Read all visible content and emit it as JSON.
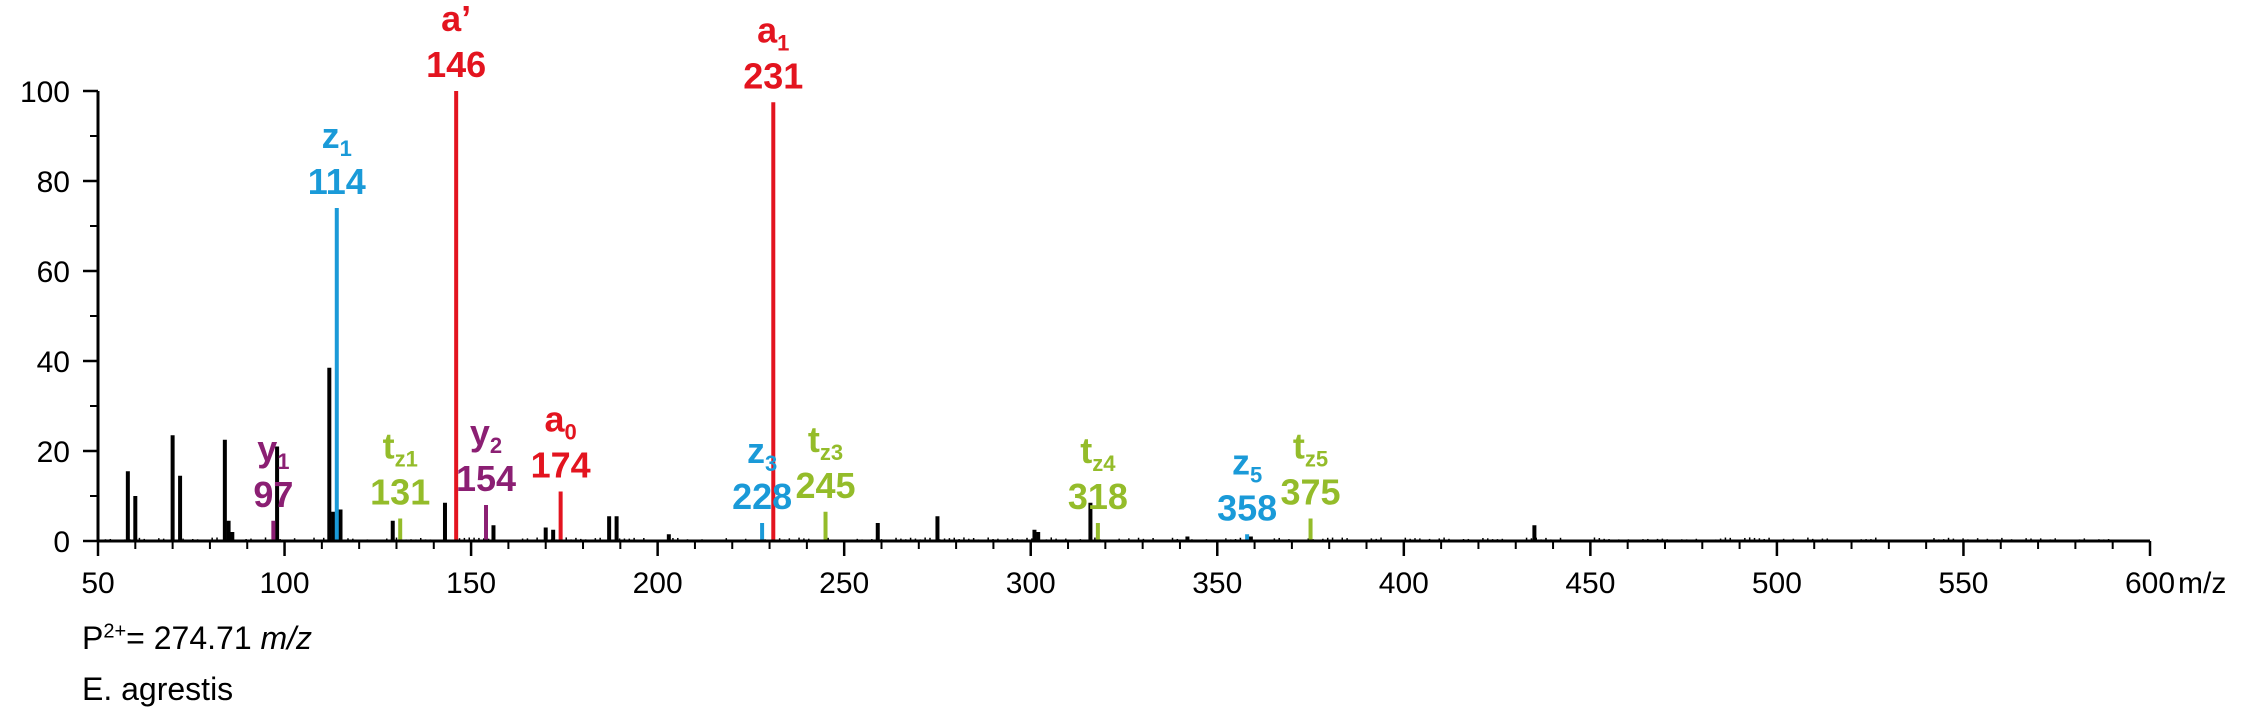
{
  "chart_data": {
    "type": "bar",
    "xlabel": "m/z",
    "xlim": [
      50,
      600
    ],
    "ylim": [
      0,
      100
    ],
    "x_ticks": [
      50,
      100,
      150,
      200,
      250,
      300,
      350,
      400,
      450,
      500,
      550,
      600
    ],
    "y_ticks": [
      0,
      20,
      40,
      60,
      80,
      100
    ],
    "colors": {
      "a": "#e3141f",
      "z": "#1a9ad8",
      "y": "#8b1f73",
      "t": "#94bc2a",
      "unassigned": "#000000"
    },
    "annotated_peaks": [
      {
        "ion": "a",
        "sub": "’",
        "label": "146",
        "mz": 146,
        "intensity": 100,
        "series": "a"
      },
      {
        "ion": "a",
        "sub": "1",
        "label": "231",
        "mz": 231,
        "intensity": 97.5,
        "series": "a"
      },
      {
        "ion": "a",
        "sub": "0",
        "label": "174",
        "mz": 174,
        "intensity": 11,
        "series": "a"
      },
      {
        "ion": "z",
        "sub": "1",
        "label": "114",
        "mz": 114,
        "intensity": 74,
        "series": "z"
      },
      {
        "ion": "z",
        "sub": "3",
        "label": "228",
        "mz": 228,
        "intensity": 4,
        "series": "z"
      },
      {
        "ion": "z",
        "sub": "5",
        "label": "358",
        "mz": 358,
        "intensity": 1.5,
        "series": "z"
      },
      {
        "ion": "y",
        "sub": "1",
        "label": "97",
        "mz": 97,
        "intensity": 4.5,
        "series": "y"
      },
      {
        "ion": "y",
        "sub": "2",
        "label": "154",
        "mz": 154,
        "intensity": 8,
        "series": "y"
      },
      {
        "ion": "t",
        "sub": "z1",
        "label": "131",
        "mz": 131,
        "intensity": 5,
        "series": "t"
      },
      {
        "ion": "t",
        "sub": "z3",
        "label": "245",
        "mz": 245,
        "intensity": 6.5,
        "series": "t"
      },
      {
        "ion": "t",
        "sub": "z4",
        "label": "318",
        "mz": 318,
        "intensity": 4,
        "series": "t"
      },
      {
        "ion": "t",
        "sub": "z5",
        "label": "375",
        "mz": 375,
        "intensity": 5,
        "series": "t"
      }
    ],
    "unassigned_peaks": [
      {
        "mz": 58,
        "intensity": 15.5
      },
      {
        "mz": 60,
        "intensity": 10
      },
      {
        "mz": 70,
        "intensity": 23.5
      },
      {
        "mz": 72,
        "intensity": 14.5
      },
      {
        "mz": 84,
        "intensity": 22.5
      },
      {
        "mz": 85,
        "intensity": 4.5
      },
      {
        "mz": 86,
        "intensity": 2
      },
      {
        "mz": 98,
        "intensity": 21
      },
      {
        "mz": 112,
        "intensity": 38.5
      },
      {
        "mz": 113,
        "intensity": 6.5
      },
      {
        "mz": 115,
        "intensity": 7
      },
      {
        "mz": 129,
        "intensity": 4.5
      },
      {
        "mz": 143,
        "intensity": 8.5
      },
      {
        "mz": 156,
        "intensity": 3.5
      },
      {
        "mz": 170,
        "intensity": 3
      },
      {
        "mz": 172,
        "intensity": 2.5
      },
      {
        "mz": 187,
        "intensity": 5.5
      },
      {
        "mz": 189,
        "intensity": 5.5
      },
      {
        "mz": 203,
        "intensity": 1.5
      },
      {
        "mz": 259,
        "intensity": 4
      },
      {
        "mz": 275,
        "intensity": 5.5
      },
      {
        "mz": 301,
        "intensity": 2.5
      },
      {
        "mz": 302,
        "intensity": 2
      },
      {
        "mz": 316,
        "intensity": 8.5
      },
      {
        "mz": 342,
        "intensity": 1
      },
      {
        "mz": 359,
        "intensity": 1
      },
      {
        "mz": 435,
        "intensity": 3.5
      }
    ]
  },
  "footnote": {
    "precursor_prefix": "P",
    "precursor_charge": "2+",
    "precursor_value": "= 274.71 ",
    "precursor_unit": "m/z",
    "species": "E. agrestis"
  }
}
